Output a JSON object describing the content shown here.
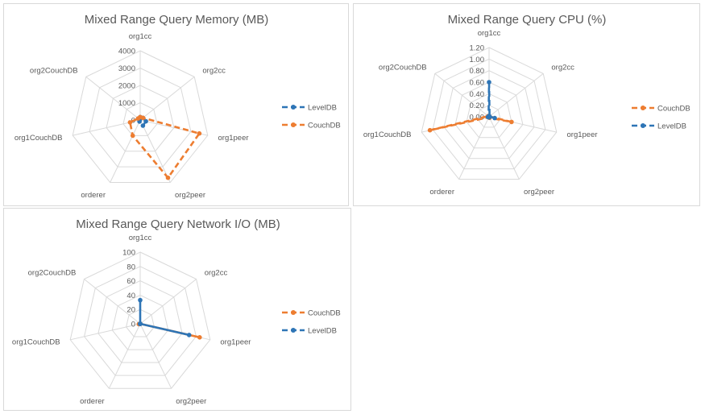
{
  "colors": {
    "leveldb": "#2e75b6",
    "couchdb": "#ed7d31",
    "grid": "#d9d9d9",
    "text": "#595959"
  },
  "chart_data": [
    {
      "type": "radar",
      "title": "Mixed Range Query Memory (MB)",
      "categories": [
        "org1cc",
        "org2cc",
        "org1peer",
        "org2peer",
        "orderer",
        "org1CouchDB",
        "org2CouchDB"
      ],
      "ylim": [
        0,
        4000
      ],
      "ticks": [
        "4000",
        "3000",
        "2000",
        "1000",
        "0"
      ],
      "legend_position": "right",
      "series": [
        {
          "name": "LevelDB",
          "color": "#2e75b6",
          "style": "dashed",
          "values": [
            170,
            200,
            340,
            360,
            100,
            40,
            40
          ]
        },
        {
          "name": "CouchDB",
          "color": "#ed7d31",
          "style": "dashed",
          "values": [
            170,
            200,
            3500,
            3700,
            1000,
            600,
            150
          ]
        }
      ]
    },
    {
      "type": "radar",
      "title": "Mixed Range Query CPU (%)",
      "categories": [
        "org1cc",
        "org2cc",
        "org1peer",
        "org2peer",
        "orderer",
        "org1CouchDB",
        "org2CouchDB"
      ],
      "ylim": [
        0,
        1.2
      ],
      "ticks": [
        "1.20",
        "1.00",
        "0.80",
        "0.60",
        "0.40",
        "0.20",
        "0.00"
      ],
      "legend_position": "right",
      "series": [
        {
          "name": "CouchDB",
          "color": "#ed7d31",
          "style": "dashed",
          "values": [
            0.01,
            0.01,
            0.4,
            0.02,
            0.01,
            1.05,
            0.02
          ]
        },
        {
          "name": "LevelDB",
          "color": "#2e75b6",
          "style": "dashed",
          "values": [
            0.6,
            0.01,
            0.1,
            0.01,
            0.01,
            0.02,
            0.01
          ]
        }
      ]
    },
    {
      "type": "radar",
      "title": "Mixed Range Query Network I/O (MB)",
      "categories": [
        "org1cc",
        "org2cc",
        "org1peer",
        "org2peer",
        "orderer",
        "org1CouchDB",
        "org2CouchDB"
      ],
      "ylim": [
        0,
        100
      ],
      "ticks": [
        "100",
        "80",
        "60",
        "40",
        "20",
        "0"
      ],
      "legend_position": "right",
      "series": [
        {
          "name": "CouchDB",
          "color": "#ed7d31",
          "style": "solid",
          "values": [
            0,
            0,
            85,
            0,
            0,
            2,
            0
          ]
        },
        {
          "name": "LevelDB",
          "color": "#2e75b6",
          "style": "solid",
          "values": [
            33,
            0,
            70,
            0,
            0,
            0,
            0
          ]
        }
      ]
    }
  ]
}
